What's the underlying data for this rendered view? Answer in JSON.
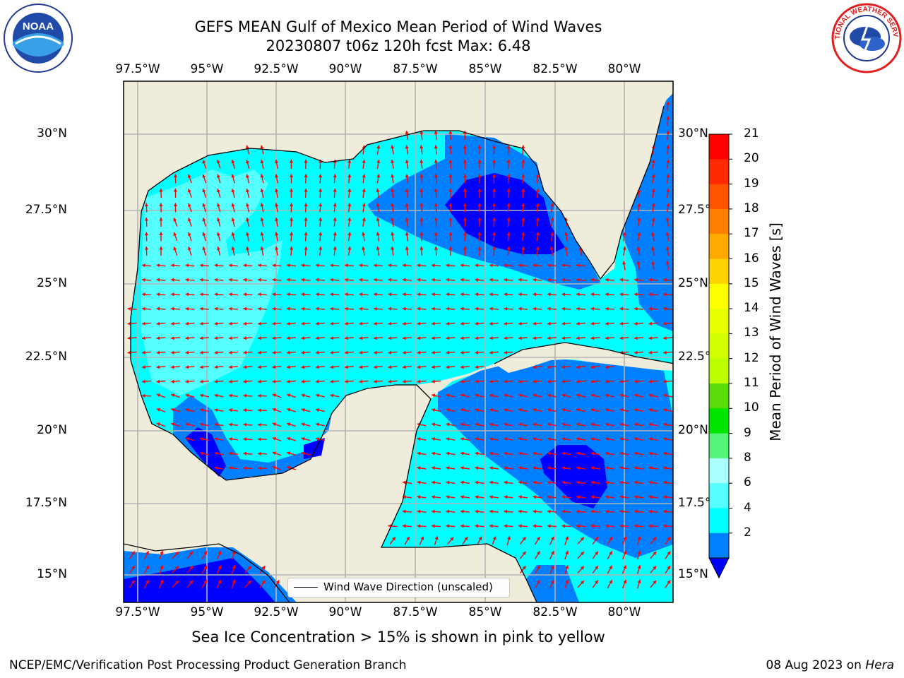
{
  "title_line1": "GEFS MEAN Gulf of Mexico Mean Period of Wind Waves",
  "title_line2": "20230807 t06z 120h fcst   Max: 6.48",
  "lon_labels": [
    "97.5°W",
    "95°W",
    "92.5°W",
    "90°W",
    "87.5°W",
    "85°W",
    "82.5°W",
    "80°W"
  ],
  "lat_labels": [
    "30°N",
    "27.5°N",
    "25°N",
    "22.5°N",
    "20°N",
    "17.5°N",
    "15°N"
  ],
  "colorbar": {
    "label": "Mean Period of Wind Waves [s]",
    "ticks": [
      "21",
      "20",
      "19",
      "18",
      "17",
      "16",
      "15",
      "14",
      "13",
      "12",
      "11",
      "10",
      "9",
      "8",
      "6",
      "4",
      "2"
    ],
    "colors": [
      "#ff0000",
      "#ff2a00",
      "#ff5500",
      "#ff7f00",
      "#ffaa00",
      "#ffd400",
      "#ffff00",
      "#e8ff00",
      "#d2ff00",
      "#bcff00",
      "#5adc08",
      "#00e600",
      "#55f57c",
      "#aaffff",
      "#55ffff",
      "#00ffff",
      "#0080ff",
      "#0000ff"
    ]
  },
  "legend_label": "Wind Wave Direction (unscaled)",
  "sea_ice_note": "Sea Ice Concentration > 15% is shown in pink to yellow",
  "footer_left": "NCEP/EMC/Verification Post Processing Product Generation Branch",
  "footer_right_date": "08 Aug 2023 on",
  "footer_right_host": "Hera",
  "logo_left_text": "NOAA",
  "logo_right_text": "NATIONAL WEATHER SERVICE",
  "colors": {
    "land": "#efecdc",
    "cyan": "#00ffff",
    "light_cyan": "#55ffff",
    "blue": "#0080ff",
    "dark_blue": "#0000ff",
    "arrow": "#ff0000",
    "grid": "#b4b4b4"
  }
}
